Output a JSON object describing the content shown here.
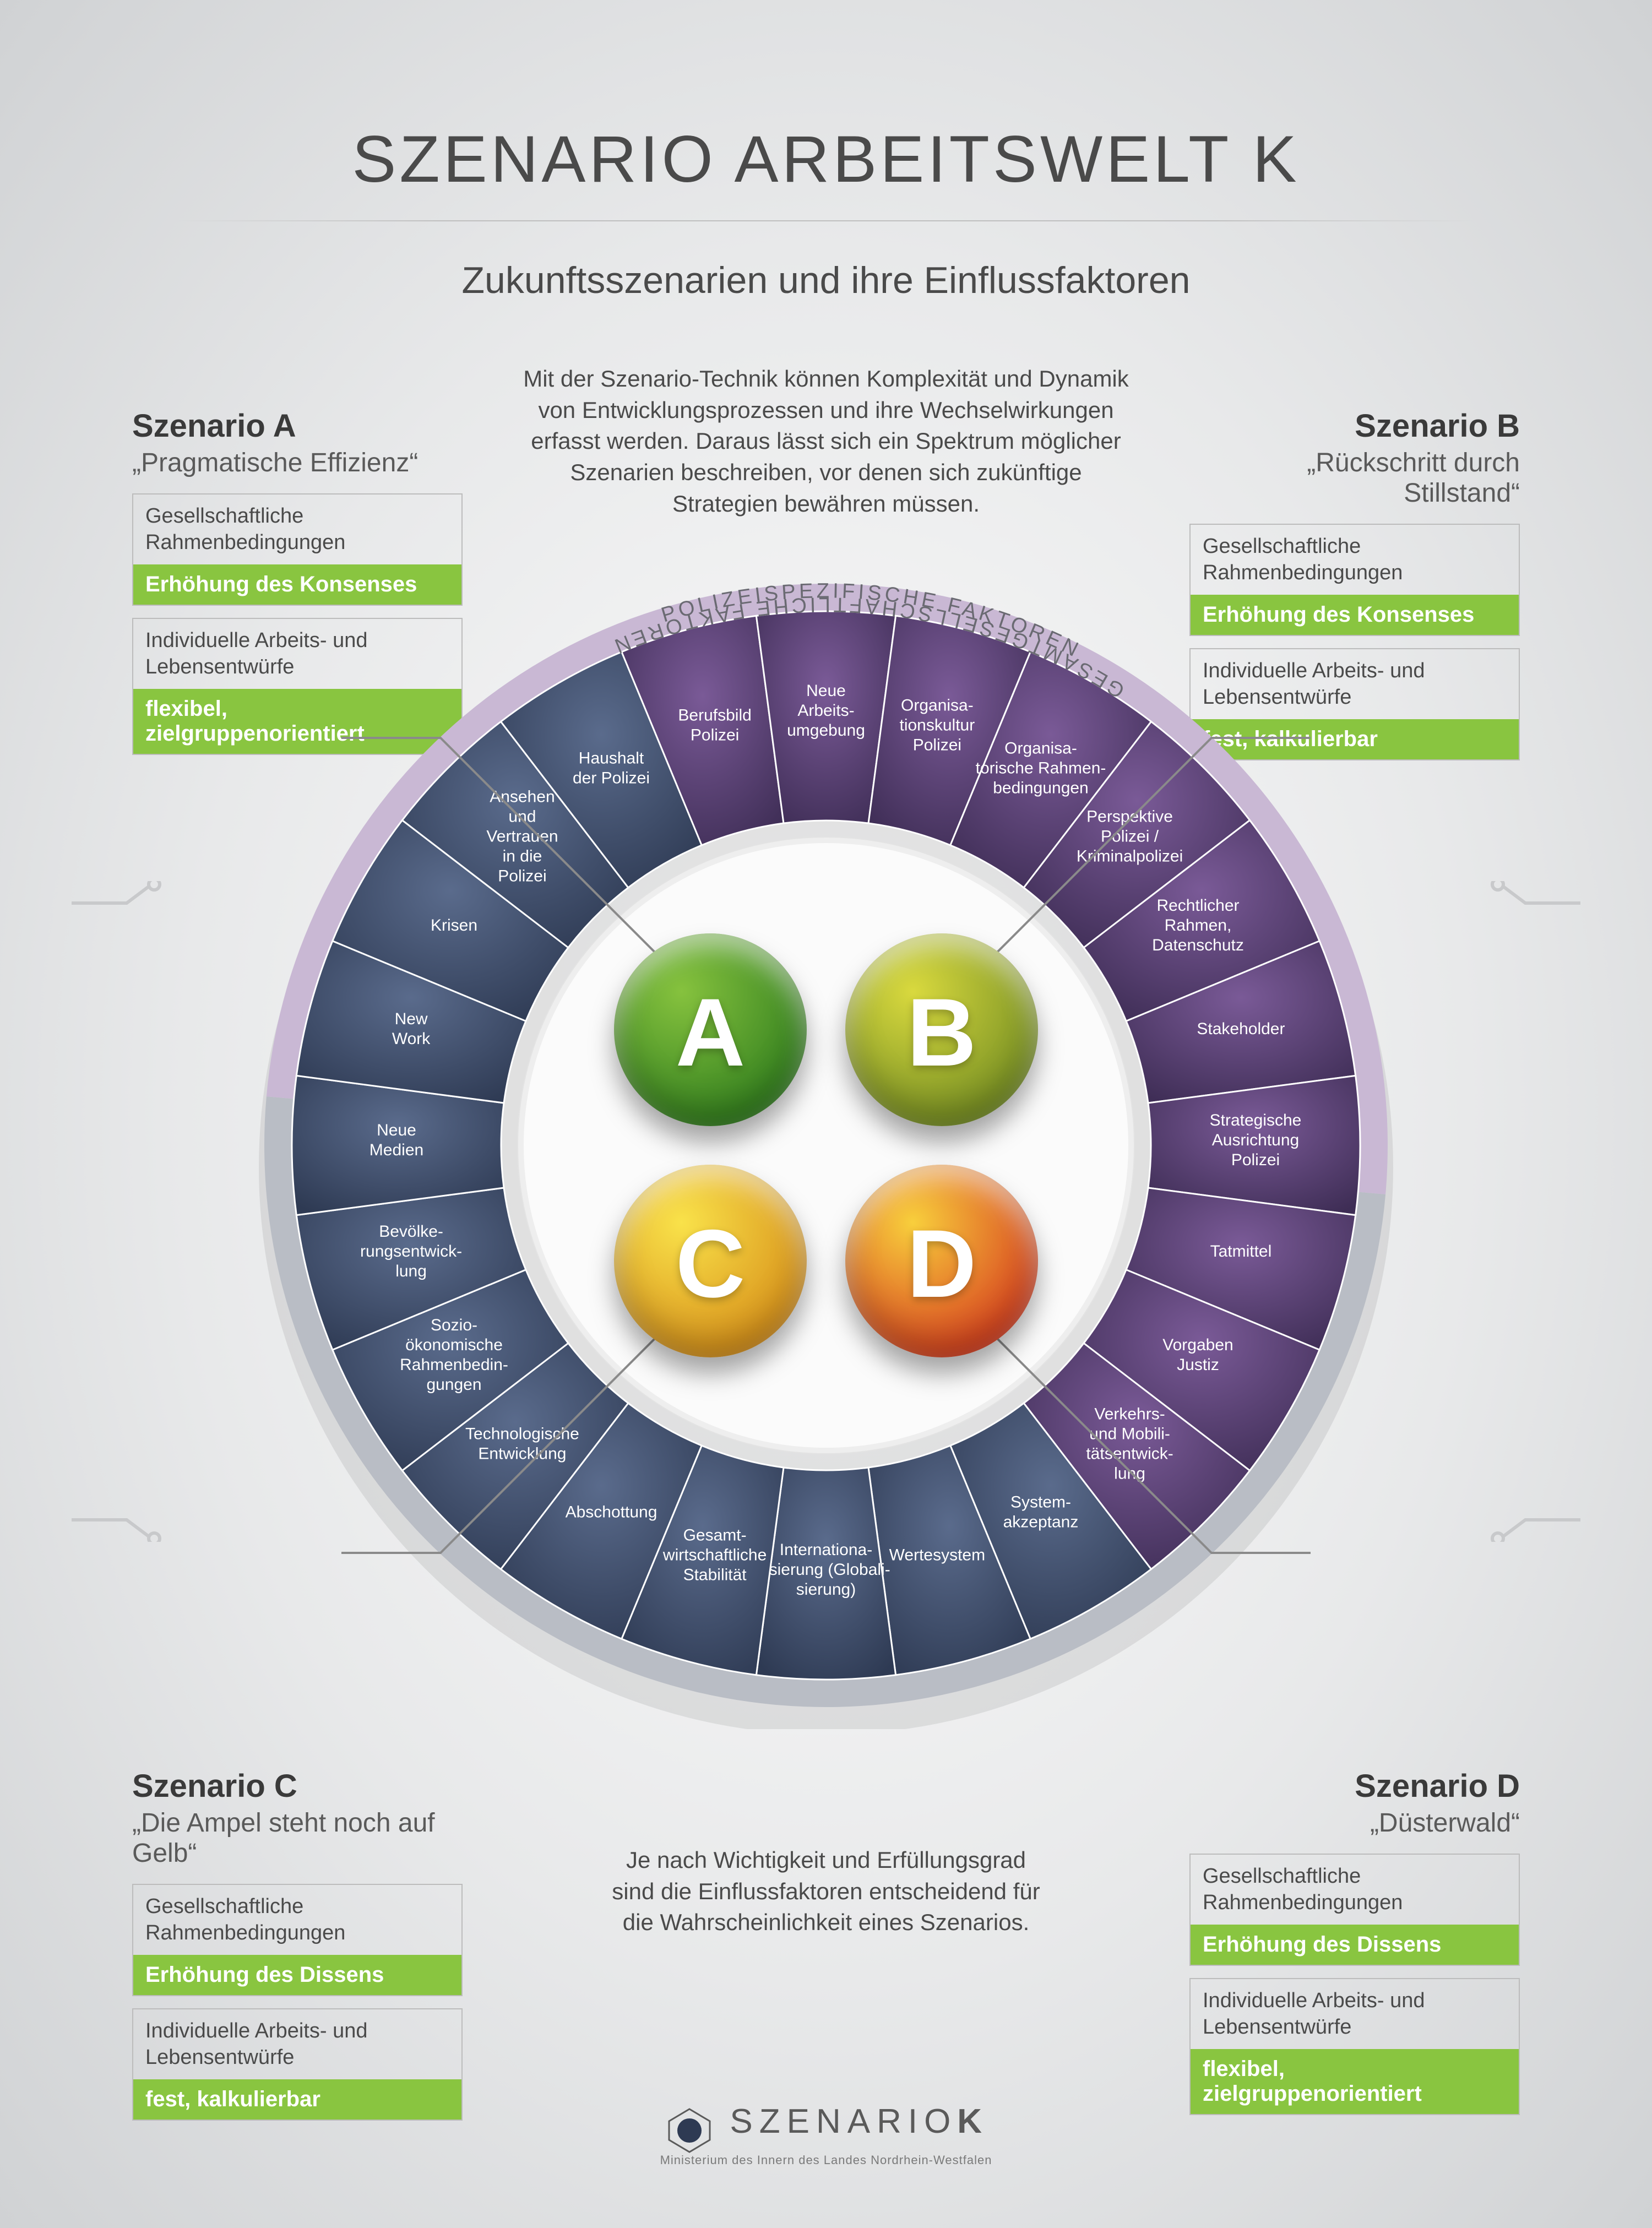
{
  "title": "SZENARIO ARBEITSWELT K",
  "subtitle": "Zukunftsszenarien und ihre Einflussfaktoren",
  "intro": "Mit der Szenario-Technik können Komplexität und Dynamik von Entwicklungsprozessen und ihre Wechselwirkungen erfasst werden. Daraus lässt sich ein Spektrum möglicher Szenarien beschreiben, vor denen sich zukünftige Strategien bewähren müssen.",
  "outro": "Je nach Wichtigkeit und Erfüllungsgrad sind die Einflussfaktoren entscheidend für die Wahrscheinlichkeit eines Szenarios.",
  "green_bar_color": "#89c540",
  "box_border_color": "#bcbcbc",
  "scenarios": {
    "A": {
      "heading": "Szenario A",
      "quote": "„Pragmatische Effizienz“",
      "f1_label": "Gesellschaftliche Rahmenbedingungen",
      "f1_value": "Erhöhung des Konsenses",
      "f2_label": "Individuelle Arbeits- und Lebensentwürfe",
      "f2_value": "flexibel, zielgruppenorientiert",
      "sphere_gradient": [
        "#86c23e",
        "#2f7d1d"
      ],
      "letter": "A"
    },
    "B": {
      "heading": "Szenario B",
      "quote": "„Rückschritt durch Stillstand“",
      "f1_label": "Gesellschaftliche Rahmenbedingungen",
      "f1_value": "Erhöhung des Konsenses",
      "f2_label": "Individuelle Arbeits- und Lebensentwürfe",
      "f2_value": "fest, kalkulierbar",
      "sphere_gradient": [
        "#d9d93e",
        "#738d22"
      ],
      "letter": "B"
    },
    "C": {
      "heading": "Szenario C",
      "quote": "„Die Ampel steht noch auf Gelb“",
      "f1_label": "Gesellschaftliche Rahmenbedingungen",
      "f1_value": "Erhöhung des Dissens",
      "f2_label": "Individuelle Arbeits- und Lebensentwürfe",
      "f2_value": "fest, kalkulierbar",
      "sphere_gradient": [
        "#f9e24a",
        "#d78e18"
      ],
      "letter": "C"
    },
    "D": {
      "heading": "Szenario D",
      "quote": "„Düsterwald“",
      "f1_label": "Gesellschaftliche Rahmenbedingungen",
      "f1_value": "Erhöhung des Dissens",
      "f2_label": "Individuelle Arbeits- und Lebensentwürfe",
      "f2_value": "flexibel, zielgruppenorientiert",
      "sphere_gradient": [
        "#f8cf3c",
        "#d63a1e"
      ],
      "letter": "D"
    }
  },
  "wheel": {
    "outer_radius": 1020,
    "ring_outer": 970,
    "ring_inner": 590,
    "inner_radius": 560,
    "left_half_label": "GESAMTGESELLSCHAFTLICHE FAKTOREN",
    "right_half_label": "POLIZEISPEZIFISCHE FAKTOREN",
    "outer_band": {
      "left_color": "#b9bdc5",
      "right_color": "#c9b8d4"
    },
    "divider_color": "#ffffff",
    "label_color": "#6a6a72",
    "segments_left": {
      "fill_top": "#5a6b8c",
      "fill_bottom": "#2e3a53",
      "items": [
        "System-\nakzeptanz",
        "Wertesystem",
        "Internationa-\nlisierung (Globali-\nsierung)",
        "Gesamt-\nwirtschaftliche\nStabilität",
        "Abschottung",
        "Technologische\nEntwicklung",
        "Sozio-\nökonomische\nRahmenbedin-\ngungen",
        "Bevölke-\nrungsentwick-\nlung",
        "Neue\nMedien",
        "New\nWork",
        "Krisen",
        "Ansehen\nund\nVertrauen\nin die\nPolizei",
        "Haushalt\nder Polizei"
      ]
    },
    "segments_right": {
      "fill_top": "#7a5a97",
      "fill_bottom": "#3e2d55",
      "items": [
        "Berufsbild\nPolizei",
        "Neue\nArbeits-\numgebung",
        "Organisa-\ntionskultur\nPolizei",
        "Organisa-\ntorische Rahmen-\nbedingungen",
        "Perspektive\nPolizei /\nKriminalpolizei",
        "Rechtlicher\nRahmen,\nDatenschutz",
        "Stakeholder",
        "Strategische\nAusrichtung\nPolizei",
        "Tatmittel",
        "Vorgaben\nJustiz",
        "Verkehrs-\nund Mobili-\ntätsentwick-\nlung"
      ]
    }
  },
  "footer": {
    "brand_pre": "SZENARIO",
    "brand_bold": "K",
    "sub": "Ministerium des Innern des Landes Nordrhein-Westfalen"
  }
}
